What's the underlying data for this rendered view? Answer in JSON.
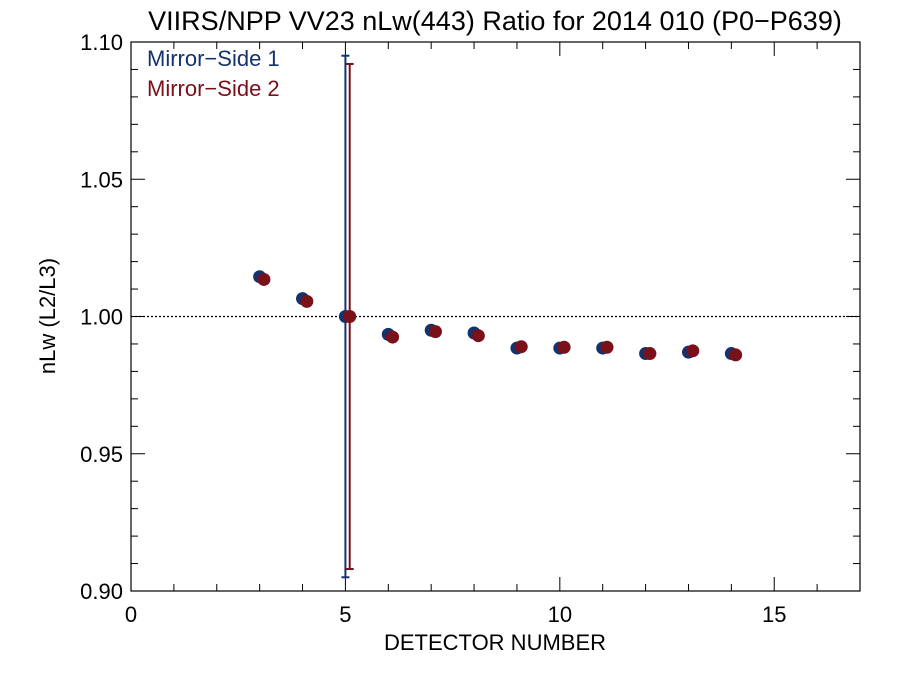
{
  "chart_data": {
    "type": "scatter",
    "title": "VIIRS/NPP VV23 nLw(443) Ratio for 2014 010 (P0−P639)",
    "xlabel": "DETECTOR NUMBER",
    "ylabel": "nLw (L2/L3)",
    "xlim": [
      0,
      17
    ],
    "ylim": [
      0.9,
      1.1
    ],
    "x_ticks": [
      0,
      5,
      10,
      15
    ],
    "x_tick_labels": [
      "0",
      "5",
      "10",
      "15"
    ],
    "y_ticks": [
      0.9,
      0.95,
      1.0,
      1.05,
      1.1
    ],
    "y_tick_labels": [
      "0.90",
      "0.95",
      "1.00",
      "1.05",
      "1.10"
    ],
    "reference_line": 1.0,
    "legend_position": "top-left",
    "series": [
      {
        "name": "Mirror−Side 1",
        "color": "#14336e",
        "x": [
          3,
          4,
          5,
          6,
          7,
          8,
          9,
          10,
          11,
          12,
          13,
          14
        ],
        "y": [
          1.0145,
          1.0065,
          1.0,
          0.9935,
          0.995,
          0.994,
          0.9885,
          0.9885,
          0.9885,
          0.9865,
          0.987,
          0.9865
        ],
        "error_bars": [
          {
            "x": 5,
            "low": 0.905,
            "high": 1.095
          }
        ]
      },
      {
        "name": "Mirror−Side 2",
        "color": "#7a1018",
        "x": [
          3.1,
          4.1,
          5.1,
          6.1,
          7.1,
          8.1,
          9.1,
          10.1,
          11.1,
          12.1,
          13.1,
          14.1
        ],
        "y": [
          1.0135,
          1.0055,
          1.0,
          0.9925,
          0.9945,
          0.993,
          0.989,
          0.9888,
          0.9888,
          0.9865,
          0.9875,
          0.986
        ],
        "error_bars": [
          {
            "x": 5.1,
            "low": 0.908,
            "high": 1.092
          }
        ]
      }
    ]
  }
}
